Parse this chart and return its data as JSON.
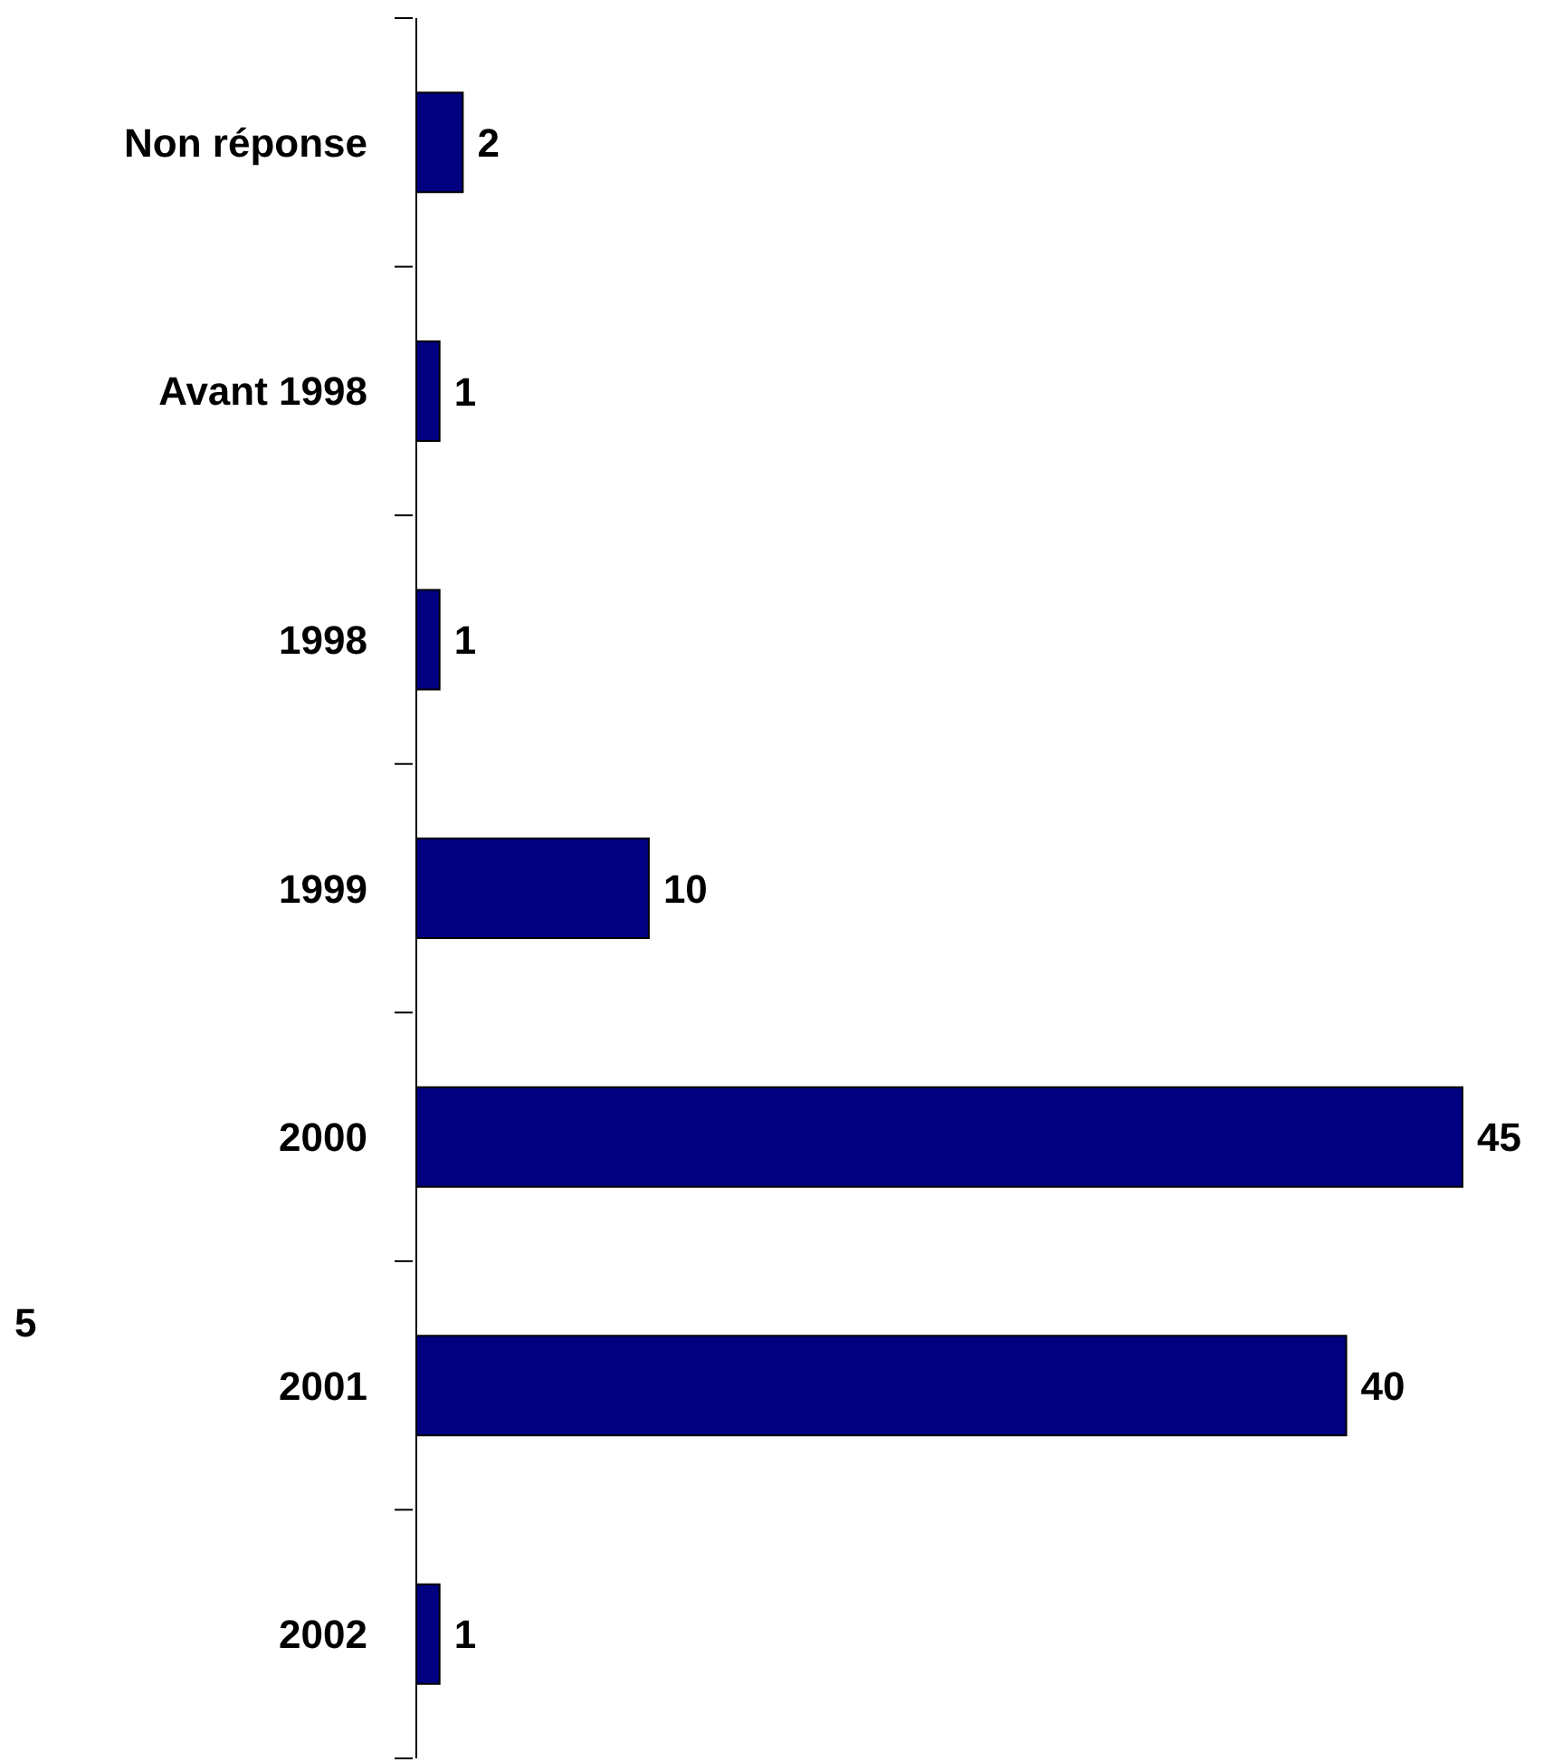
{
  "chart_data": {
    "type": "bar",
    "orientation": "horizontal",
    "data_labels": true,
    "grid": false,
    "legend": false,
    "categories": [
      "Non réponse",
      "Avant 1998",
      "1998",
      "1999",
      "2000",
      "2001",
      "2002"
    ],
    "values": [
      2,
      1,
      1,
      10,
      45,
      40,
      1
    ],
    "color": "#000080",
    "annotations": [
      "5"
    ]
  }
}
